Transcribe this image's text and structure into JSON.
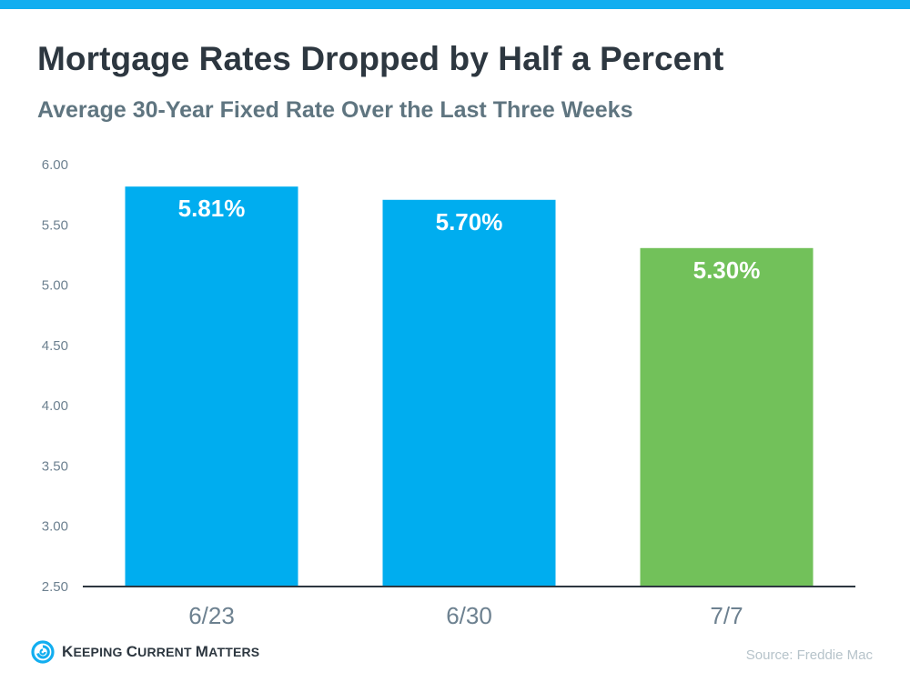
{
  "header": {
    "title": "Mortgage Rates Dropped by Half a Percent",
    "subtitle": "Average 30-Year Fixed Rate Over the Last Three Weeks"
  },
  "colors": {
    "top_band": "#12aef0",
    "bar_blue": "#00adef",
    "bar_green": "#72c15a",
    "axis_line": "#2d3740",
    "tick_text": "#6d8190",
    "title_text": "#2d3740"
  },
  "chart_data": {
    "type": "bar",
    "title": "Mortgage Rates Dropped by Half a Percent",
    "subtitle": "Average 30-Year Fixed Rate Over the Last Three Weeks",
    "categories": [
      "6/23",
      "6/30",
      "7/7"
    ],
    "values": [
      5.81,
      5.7,
      5.3
    ],
    "data_labels": [
      "5.81%",
      "5.70%",
      "5.30%"
    ],
    "bar_colors": [
      "#00adef",
      "#00adef",
      "#72c15a"
    ],
    "xlabel": "",
    "ylabel": "",
    "ylim": [
      2.5,
      6.0
    ],
    "yticks": [
      2.5,
      3.0,
      3.5,
      4.0,
      4.5,
      5.0,
      5.5,
      6.0
    ],
    "ytick_labels": [
      "2.50",
      "3.00",
      "3.50",
      "4.00",
      "4.50",
      "5.00",
      "5.50",
      "6.00"
    ],
    "grid": false,
    "legend": "none"
  },
  "footer": {
    "logo_text_parts": [
      {
        "big": "K",
        "rest": "EEPING "
      },
      {
        "big": "C",
        "rest": "URRENT "
      },
      {
        "big": "M",
        "rest": "ATTERS"
      }
    ],
    "logo_label": "Keeping Current Matters",
    "source": "Source: Freddie Mac"
  }
}
